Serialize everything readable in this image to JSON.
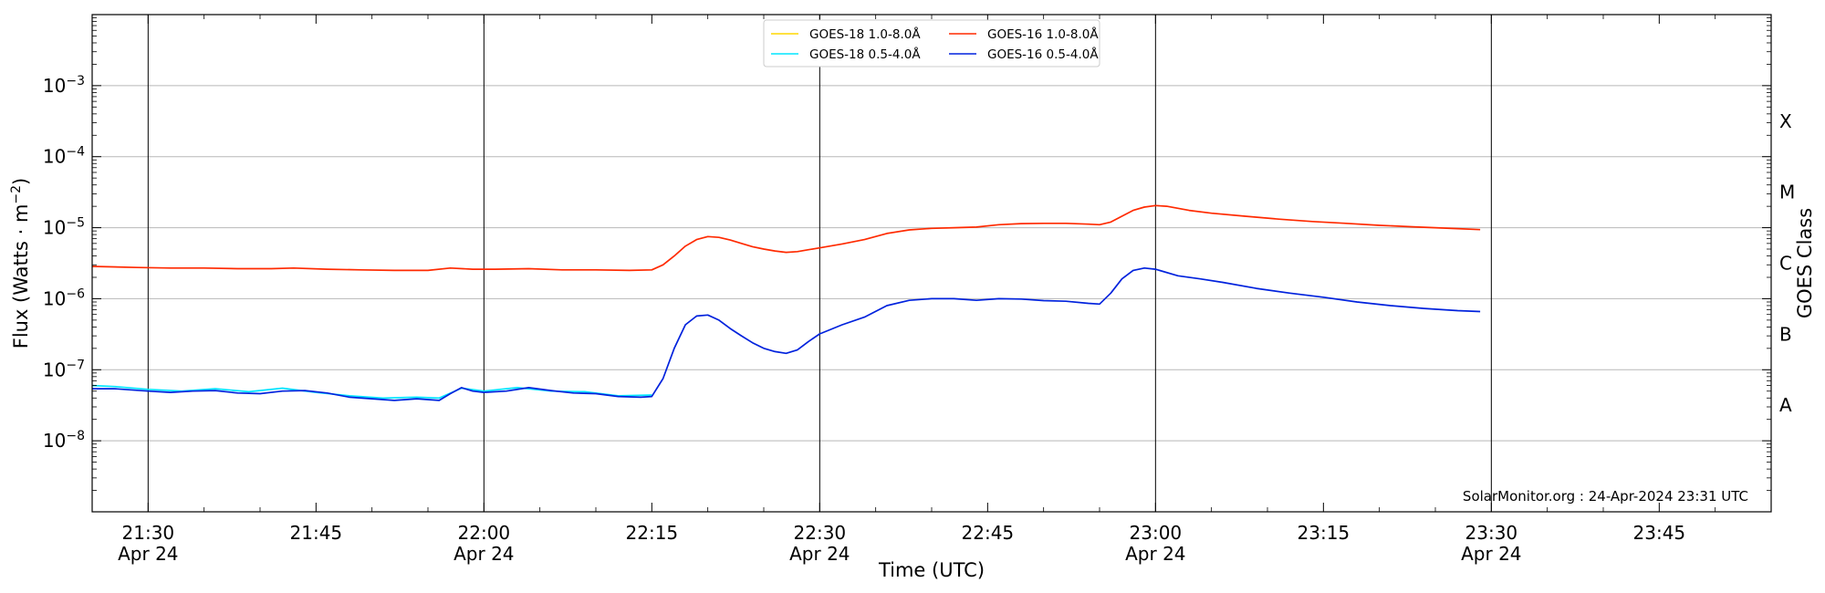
{
  "chart_data": {
    "type": "line",
    "xlabel": "Time (UTC)",
    "ylabel_prefix": "Flux (Watts · m",
    "ylabel_exp": "−2",
    "ylabel_suffix": ")",
    "right_label": "GOES Class",
    "credit": "SolarMonitor.org : 24-Apr-2024 23:31 UTC",
    "y_scale": "log",
    "ylim": [
      1e-09,
      0.01
    ],
    "xlim": [
      "21:25",
      "23:55"
    ],
    "grid": "horizontal at decades",
    "legend_position": "top-center",
    "x_ticks": [
      {
        "time": "21:30",
        "label": "21:30",
        "sub": "Apr 24",
        "major": true
      },
      {
        "time": "21:45",
        "label": "21:45",
        "sub": "",
        "major": false
      },
      {
        "time": "22:00",
        "label": "22:00",
        "sub": "Apr 24",
        "major": true
      },
      {
        "time": "22:15",
        "label": "22:15",
        "sub": "",
        "major": false
      },
      {
        "time": "22:30",
        "label": "22:30",
        "sub": "Apr 24",
        "major": true
      },
      {
        "time": "22:45",
        "label": "22:45",
        "sub": "",
        "major": false
      },
      {
        "time": "23:00",
        "label": "23:00",
        "sub": "Apr 24",
        "major": true
      },
      {
        "time": "23:15",
        "label": "23:15",
        "sub": "",
        "major": false
      },
      {
        "time": "23:30",
        "label": "23:30",
        "sub": "Apr 24",
        "major": true
      },
      {
        "time": "23:45",
        "label": "23:45",
        "sub": "",
        "major": false
      }
    ],
    "y_ticks": [
      {
        "value": 1e-08,
        "base": "10",
        "exp": "−8"
      },
      {
        "value": 1e-07,
        "base": "10",
        "exp": "−7"
      },
      {
        "value": 1e-06,
        "base": "10",
        "exp": "−6"
      },
      {
        "value": 1e-05,
        "base": "10",
        "exp": "−5"
      },
      {
        "value": 0.0001,
        "base": "10",
        "exp": "−4"
      },
      {
        "value": 0.001,
        "base": "10",
        "exp": "−3"
      }
    ],
    "goes_classes": [
      {
        "label": "A",
        "value": 3.16e-08
      },
      {
        "label": "B",
        "value": 3.16e-07
      },
      {
        "label": "C",
        "value": 3.16e-06
      },
      {
        "label": "M",
        "value": 3.16e-05
      },
      {
        "label": "X",
        "value": 0.000316
      }
    ],
    "legend": [
      {
        "name": "GOES-18 1.0-8.0Å",
        "color": "#ffd700"
      },
      {
        "name": "GOES-18 0.5-4.0Å",
        "color": "#00e5ff"
      },
      {
        "name": "GOES-16 1.0-8.0Å",
        "color": "#ff2a00"
      },
      {
        "name": "GOES-16 0.5-4.0Å",
        "color": "#0022dd"
      }
    ],
    "series": [
      {
        "name": "GOES-18 0.5-4.0Å",
        "color": "#00e5ff",
        "points": [
          [
            "21:25",
            6e-08
          ],
          [
            "21:27",
            5.8e-08
          ],
          [
            "21:30",
            5.3e-08
          ],
          [
            "21:33",
            5e-08
          ],
          [
            "21:36",
            5.4e-08
          ],
          [
            "21:39",
            4.9e-08
          ],
          [
            "21:42",
            5.5e-08
          ],
          [
            "21:45",
            4.8e-08
          ],
          [
            "21:48",
            4.3e-08
          ],
          [
            "21:51",
            4e-08
          ],
          [
            "21:54",
            4.1e-08
          ],
          [
            "21:56",
            4e-08
          ],
          [
            "21:58",
            5.5e-08
          ],
          [
            "22:00",
            5e-08
          ],
          [
            "22:03",
            5.6e-08
          ],
          [
            "22:06",
            5e-08
          ],
          [
            "22:09",
            4.9e-08
          ],
          [
            "22:12",
            4.3e-08
          ],
          [
            "22:15",
            4.4e-08
          ]
        ]
      },
      {
        "name": "GOES-16 1.0-8.0Å",
        "color": "#ff2a00",
        "points": [
          [
            "21:25",
            2.85e-06
          ],
          [
            "21:29",
            2.75e-06
          ],
          [
            "21:32",
            2.7e-06
          ],
          [
            "21:35",
            2.7e-06
          ],
          [
            "21:38",
            2.65e-06
          ],
          [
            "21:41",
            2.65e-06
          ],
          [
            "21:43",
            2.7e-06
          ],
          [
            "21:46",
            2.6e-06
          ],
          [
            "21:49",
            2.55e-06
          ],
          [
            "21:52",
            2.5e-06
          ],
          [
            "21:55",
            2.5e-06
          ],
          [
            "21:57",
            2.7e-06
          ],
          [
            "21:59",
            2.6e-06
          ],
          [
            "22:01",
            2.6e-06
          ],
          [
            "22:04",
            2.65e-06
          ],
          [
            "22:07",
            2.55e-06
          ],
          [
            "22:10",
            2.55e-06
          ],
          [
            "22:13",
            2.5e-06
          ],
          [
            "22:15",
            2.55e-06
          ],
          [
            "22:16",
            3e-06
          ],
          [
            "22:17",
            4e-06
          ],
          [
            "22:18",
            5.5e-06
          ],
          [
            "22:19",
            6.8e-06
          ],
          [
            "22:20",
            7.5e-06
          ],
          [
            "22:21",
            7.3e-06
          ],
          [
            "22:22",
            6.7e-06
          ],
          [
            "22:23",
            6e-06
          ],
          [
            "22:24",
            5.4e-06
          ],
          [
            "22:25",
            5e-06
          ],
          [
            "22:26",
            4.7e-06
          ],
          [
            "22:27",
            4.5e-06
          ],
          [
            "22:28",
            4.6e-06
          ],
          [
            "22:29",
            4.9e-06
          ],
          [
            "22:30",
            5.2e-06
          ],
          [
            "22:32",
            5.9e-06
          ],
          [
            "22:34",
            6.8e-06
          ],
          [
            "22:36",
            8.3e-06
          ],
          [
            "22:38",
            9.3e-06
          ],
          [
            "22:40",
            9.8e-06
          ],
          [
            "22:42",
            1e-05
          ],
          [
            "22:44",
            1.02e-05
          ],
          [
            "22:46",
            1.1e-05
          ],
          [
            "22:48",
            1.14e-05
          ],
          [
            "22:50",
            1.15e-05
          ],
          [
            "22:52",
            1.15e-05
          ],
          [
            "22:54",
            1.12e-05
          ],
          [
            "22:55",
            1.1e-05
          ],
          [
            "22:56",
            1.2e-05
          ],
          [
            "22:57",
            1.45e-05
          ],
          [
            "22:58",
            1.75e-05
          ],
          [
            "22:59",
            1.95e-05
          ],
          [
            "23:00",
            2.05e-05
          ],
          [
            "23:01",
            2e-05
          ],
          [
            "23:03",
            1.75e-05
          ],
          [
            "23:05",
            1.6e-05
          ],
          [
            "23:08",
            1.45e-05
          ],
          [
            "23:11",
            1.32e-05
          ],
          [
            "23:14",
            1.22e-05
          ],
          [
            "23:17",
            1.15e-05
          ],
          [
            "23:20",
            1.08e-05
          ],
          [
            "23:23",
            1.03e-05
          ],
          [
            "23:25",
            1e-05
          ],
          [
            "23:27",
            9.7e-06
          ],
          [
            "23:29",
            9.4e-06
          ]
        ]
      },
      {
        "name": "GOES-16 0.5-4.0Å",
        "color": "#0022dd",
        "points": [
          [
            "21:25",
            5.4e-08
          ],
          [
            "21:27",
            5.4e-08
          ],
          [
            "21:30",
            5e-08
          ],
          [
            "21:32",
            4.8e-08
          ],
          [
            "21:34",
            5e-08
          ],
          [
            "21:36",
            5.1e-08
          ],
          [
            "21:38",
            4.7e-08
          ],
          [
            "21:40",
            4.6e-08
          ],
          [
            "21:42",
            5e-08
          ],
          [
            "21:44",
            5.1e-08
          ],
          [
            "21:46",
            4.7e-08
          ],
          [
            "21:48",
            4.1e-08
          ],
          [
            "21:50",
            3.9e-08
          ],
          [
            "21:52",
            3.7e-08
          ],
          [
            "21:54",
            3.9e-08
          ],
          [
            "21:56",
            3.7e-08
          ],
          [
            "21:57",
            4.6e-08
          ],
          [
            "21:58",
            5.6e-08
          ],
          [
            "21:59",
            5e-08
          ],
          [
            "22:00",
            4.8e-08
          ],
          [
            "22:02",
            5e-08
          ],
          [
            "22:04",
            5.6e-08
          ],
          [
            "22:06",
            5.1e-08
          ],
          [
            "22:08",
            4.7e-08
          ],
          [
            "22:10",
            4.6e-08
          ],
          [
            "22:12",
            4.2e-08
          ],
          [
            "22:14",
            4.1e-08
          ],
          [
            "22:15",
            4.2e-08
          ],
          [
            "22:16",
            7.5e-08
          ],
          [
            "22:17",
            2e-07
          ],
          [
            "22:18",
            4.3e-07
          ],
          [
            "22:19",
            5.7e-07
          ],
          [
            "22:20",
            5.9e-07
          ],
          [
            "22:21",
            5e-07
          ],
          [
            "22:22",
            3.8e-07
          ],
          [
            "22:23",
            3e-07
          ],
          [
            "22:24",
            2.4e-07
          ],
          [
            "22:25",
            2e-07
          ],
          [
            "22:26",
            1.8e-07
          ],
          [
            "22:27",
            1.7e-07
          ],
          [
            "22:28",
            1.9e-07
          ],
          [
            "22:29",
            2.5e-07
          ],
          [
            "22:30",
            3.2e-07
          ],
          [
            "22:32",
            4.3e-07
          ],
          [
            "22:34",
            5.5e-07
          ],
          [
            "22:36",
            8e-07
          ],
          [
            "22:38",
            9.5e-07
          ],
          [
            "22:40",
            1e-06
          ],
          [
            "22:42",
            1e-06
          ],
          [
            "22:44",
            9.5e-07
          ],
          [
            "22:46",
            1e-06
          ],
          [
            "22:48",
            9.9e-07
          ],
          [
            "22:50",
            9.4e-07
          ],
          [
            "22:52",
            9.2e-07
          ],
          [
            "22:54",
            8.6e-07
          ],
          [
            "22:55",
            8.4e-07
          ],
          [
            "22:56",
            1.2e-06
          ],
          [
            "22:57",
            1.9e-06
          ],
          [
            "22:58",
            2.5e-06
          ],
          [
            "22:59",
            2.7e-06
          ],
          [
            "23:00",
            2.6e-06
          ],
          [
            "23:02",
            2.1e-06
          ],
          [
            "23:04",
            1.9e-06
          ],
          [
            "23:06",
            1.7e-06
          ],
          [
            "23:09",
            1.4e-06
          ],
          [
            "23:12",
            1.2e-06
          ],
          [
            "23:15",
            1.05e-06
          ],
          [
            "23:18",
            9e-07
          ],
          [
            "23:21",
            8e-07
          ],
          [
            "23:24",
            7.3e-07
          ],
          [
            "23:27",
            6.8e-07
          ],
          [
            "23:29",
            6.6e-07
          ]
        ]
      }
    ]
  }
}
